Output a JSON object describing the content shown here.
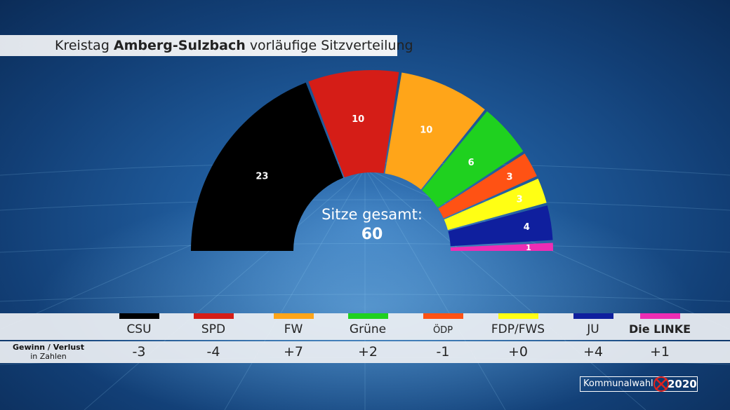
{
  "title": {
    "prefix": "Kreistag",
    "district": "Amberg-Sulzbach",
    "suffix": "vorläufige Sitzverteilung"
  },
  "total": {
    "label": "Sitze gesamt:",
    "value": "60"
  },
  "change_label": {
    "line1": "Gewinn / Verlust",
    "line2": "in Zahlen"
  },
  "brand": {
    "text": "Kommunalwahl",
    "year": "2020"
  },
  "chart_data": {
    "type": "semicircle-seats",
    "total_seats": 60,
    "parties": [
      {
        "name": "CSU",
        "seats": 23,
        "change": "-3",
        "color": "#000000",
        "label_color": "#ffffff"
      },
      {
        "name": "SPD",
        "seats": 10,
        "change": "-4",
        "color": "#d51d17",
        "label_color": "#ffffff"
      },
      {
        "name": "FW",
        "seats": 10,
        "change": "+7",
        "color": "#ffa519",
        "label_color": "#ffffff"
      },
      {
        "name": "Grüne",
        "seats": 6,
        "change": "+2",
        "color": "#1fd11f",
        "label_color": "#ffffff"
      },
      {
        "name": "ÖDP",
        "seats": 3,
        "change": "-1",
        "color": "#ff5214",
        "label_color": "#ffffff"
      },
      {
        "name": "FDP/FWS",
        "seats": 3,
        "change": "+0",
        "color": "#ffff14",
        "label_color": "#ffffff"
      },
      {
        "name": "JU",
        "seats": 4,
        "change": "+4",
        "color": "#0f1f9e",
        "label_color": "#ffffff"
      },
      {
        "name": "Die LINKE",
        "seats": 1,
        "change": "+1",
        "color": "#ee2db4",
        "label_color": "#ffffff"
      }
    ]
  }
}
